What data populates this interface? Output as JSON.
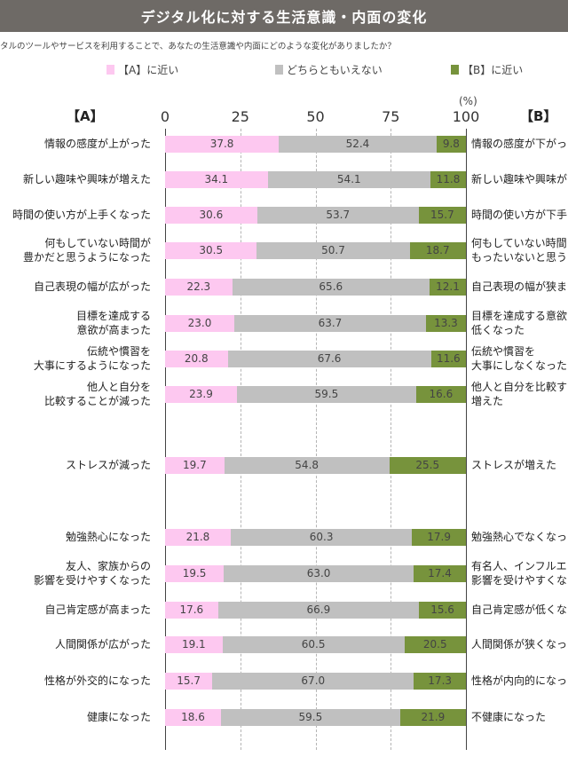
{
  "title": "デジタル化に対する生活意識・内面の変化",
  "question": "タルのツールやサービスを利用することで、あなたの生活意識や内面にどのような変化がありましたか？",
  "unit": "(%)",
  "header_a": "【A】",
  "header_b": "【B】",
  "colors": {
    "a": "#fdc8f0",
    "neutral": "#c0c0c0",
    "b": "#77933c",
    "title_bg": "#6e6a66"
  },
  "chart_data": {
    "type": "bar",
    "orientation": "horizontal",
    "stacked": true,
    "xlim": [
      0,
      100
    ],
    "xticks": [
      "0",
      "25",
      "50",
      "75",
      "100"
    ],
    "legend": [
      {
        "name": "【A】に近い",
        "color": "#fdc8f0"
      },
      {
        "name": "どちらともいえない",
        "color": "#c0c0c0"
      },
      {
        "name": "【B】に近い",
        "color": "#77933c"
      }
    ],
    "legend_position": "top",
    "rows": [
      {
        "a_label": [
          "情報の感度が上がった"
        ],
        "b_label": [
          "情報の感度が下がった"
        ],
        "a": 37.8,
        "n": 52.4,
        "b": 9.8,
        "a_text": "37.8",
        "n_text": "52.4",
        "b_text": "9.8"
      },
      {
        "a_label": [
          "新しい趣味や興味が増えた"
        ],
        "b_label": [
          "新しい趣味や興味が"
        ],
        "a": 34.1,
        "n": 54.1,
        "b": 11.8,
        "a_text": "34.1",
        "n_text": "54.1",
        "b_text": "11.8"
      },
      {
        "a_label": [
          "時間の使い方が上手くなった"
        ],
        "b_label": [
          "時間の使い方が下手"
        ],
        "a": 30.6,
        "n": 53.7,
        "b": 15.7,
        "a_text": "30.6",
        "n_text": "53.7",
        "b_text": "15.7"
      },
      {
        "a_label": [
          "何もしていない時間が",
          "豊かだと思うようになった"
        ],
        "b_label": [
          "何もしていない時間",
          "もったいないと思う"
        ],
        "a": 30.5,
        "n": 50.7,
        "b": 18.7,
        "a_text": "30.5",
        "n_text": "50.7",
        "b_text": "18.7"
      },
      {
        "a_label": [
          "自己表現の幅が広がった"
        ],
        "b_label": [
          "自己表現の幅が狭ま"
        ],
        "a": 22.3,
        "n": 65.6,
        "b": 12.1,
        "a_text": "22.3",
        "n_text": "65.6",
        "b_text": "12.1"
      },
      {
        "a_label": [
          "目標を達成する",
          "意欲が高まった"
        ],
        "b_label": [
          "目標を達成する意欲",
          "低くなった"
        ],
        "a": 23.0,
        "n": 63.7,
        "b": 13.3,
        "a_text": "23.0",
        "n_text": "63.7",
        "b_text": "13.3"
      },
      {
        "a_label": [
          "伝統や慣習を",
          "大事にするようになった"
        ],
        "b_label": [
          "伝統や慣習を",
          "大事にしなくなった"
        ],
        "a": 20.8,
        "n": 67.6,
        "b": 11.6,
        "a_text": "20.8",
        "n_text": "67.6",
        "b_text": "11.6"
      },
      {
        "a_label": [
          "他人と自分を",
          "比較することが減った"
        ],
        "b_label": [
          "他人と自分を比較す",
          "増えた"
        ],
        "a": 23.9,
        "n": 59.5,
        "b": 16.6,
        "a_text": "23.9",
        "n_text": "59.5",
        "b_text": "16.6"
      },
      {
        "a_label": [
          "ストレスが減った"
        ],
        "b_label": [
          "ストレスが増えた"
        ],
        "a": 19.7,
        "n": 54.8,
        "b": 25.5,
        "a_text": "19.7",
        "n_text": "54.8",
        "b_text": "25.5"
      },
      {
        "a_label": [
          "勉強熱心になった"
        ],
        "b_label": [
          "勉強熱心でなくなっ"
        ],
        "a": 21.8,
        "n": 60.3,
        "b": 17.9,
        "a_text": "21.8",
        "n_text": "60.3",
        "b_text": "17.9"
      },
      {
        "a_label": [
          "友人、家族からの",
          "影響を受けやすくなった"
        ],
        "b_label": [
          "有名人、インフルエ",
          "影響を受けやすくな"
        ],
        "a": 19.5,
        "n": 63.0,
        "b": 17.4,
        "a_text": "19.5",
        "n_text": "63.0",
        "b_text": "17.4"
      },
      {
        "a_label": [
          "自己肯定感が高まった"
        ],
        "b_label": [
          "自己肯定感が低くな"
        ],
        "a": 17.6,
        "n": 66.9,
        "b": 15.6,
        "a_text": "17.6",
        "n_text": "66.9",
        "b_text": "15.6"
      },
      {
        "a_label": [
          "人間関係が広がった"
        ],
        "b_label": [
          "人間関係が狭くなっ"
        ],
        "a": 19.1,
        "n": 60.5,
        "b": 20.5,
        "a_text": "19.1",
        "n_text": "60.5",
        "b_text": "20.5"
      },
      {
        "a_label": [
          "性格が外交的になった"
        ],
        "b_label": [
          "性格が内向的になっ"
        ],
        "a": 15.7,
        "n": 67.0,
        "b": 17.3,
        "a_text": "15.7",
        "n_text": "67.0",
        "b_text": "17.3"
      },
      {
        "a_label": [
          "健康になった"
        ],
        "b_label": [
          "不健康になった"
        ],
        "a": 18.6,
        "n": 59.5,
        "b": 21.9,
        "a_text": "18.6",
        "n_text": "59.5",
        "b_text": "21.9"
      }
    ]
  }
}
